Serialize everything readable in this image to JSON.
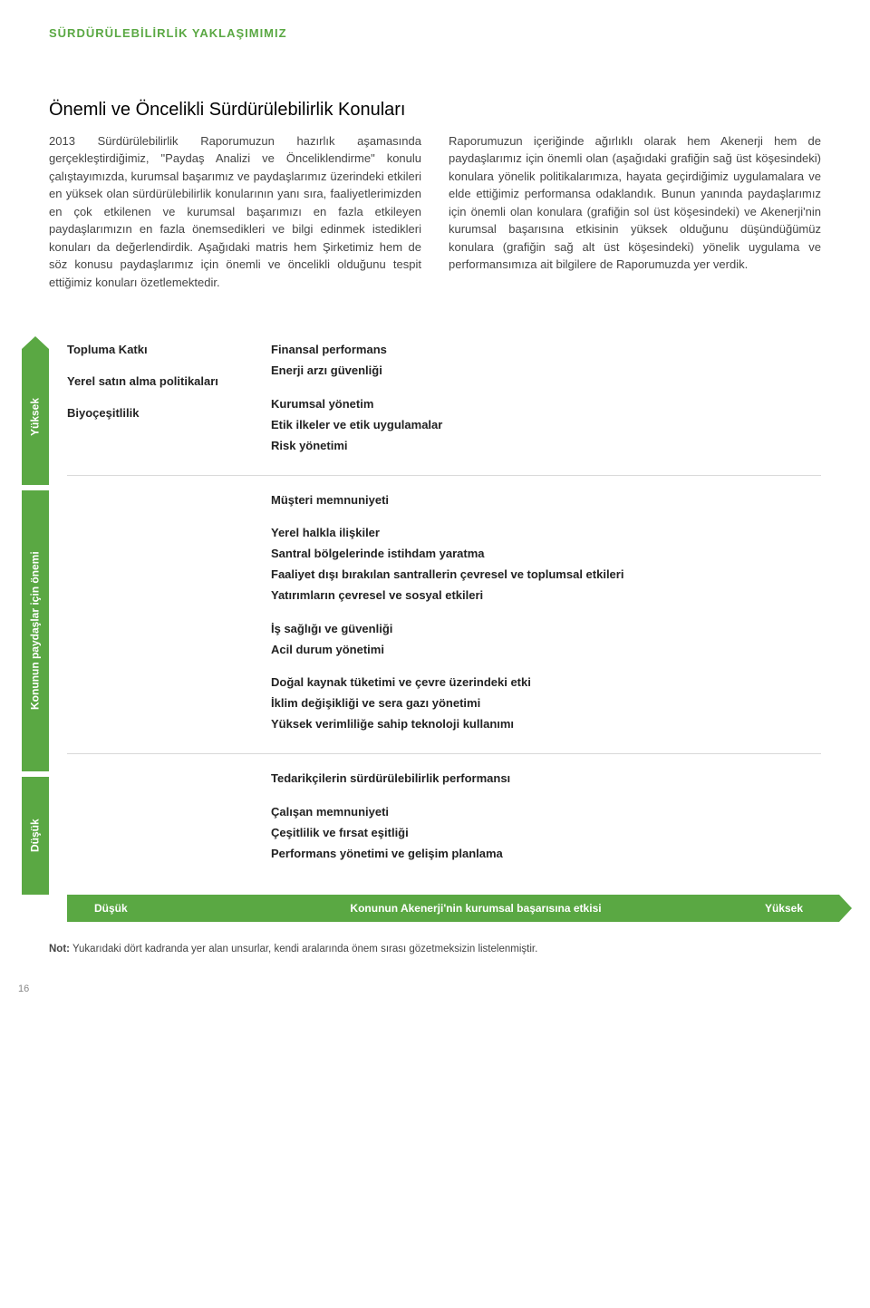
{
  "header": {
    "section": "SÜRDÜRÜLEBİLİRLİK YAKLAŞIMIMIZ",
    "title": "Önemli ve Öncelikli Sürdürülebilirlik Konuları"
  },
  "paragraphs": {
    "left": "2013 Sürdürülebilirlik Raporumuzun hazırlık aşamasında gerçekleştirdiğimiz, \"Paydaş Analizi ve Önceliklendirme\" konulu çalıştayımızda, kurumsal başarımız ve paydaşlarımız üzerindeki etkileri en yüksek olan sürdürülebilirlik konularının yanı sıra, faaliyetlerimizden en çok etkilenen ve kurumsal başarımızı en fazla etkileyen paydaşlarımızın en fazla önemsedikleri ve bilgi edinmek istedikleri konuları da değerlendirdik. Aşağıdaki matris hem Şirketimiz hem de söz konusu paydaşlarımız için önemli ve öncelikli olduğunu tespit ettiğimiz konuları özetlemektedir.",
    "right": "Raporumuzun içeriğinde ağırlıklı olarak hem Akenerji hem de paydaşlarımız için önemli olan (aşağıdaki grafiğin sağ üst köşesindeki) konulara yönelik politikalarımıza, hayata geçirdiğimiz uygulamalara ve elde ettiğimiz performansa odaklandık. Bunun yanında paydaşlarımız için önemli olan konulara (grafiğin sol üst köşesindeki) ve Akenerji'nin kurumsal başarısına etkisinin yüksek olduğunu düşündüğümüz konulara (grafiğin sağ alt üst köşesindeki) yönelik uygulama ve performansımıza ait bilgilere de Raporumuzda yer verdik."
  },
  "matrix": {
    "type": "materiality-quadrant",
    "colors": {
      "axis_bg": "#5aa843",
      "axis_text": "#ffffff",
      "grid_line": "#d9d9d9",
      "item_text": "#222222"
    },
    "y_axis": {
      "high": "Yüksek",
      "mid": "Konunun paydaşlar için önemi",
      "low": "Düşük"
    },
    "x_axis": {
      "low": "Düşük",
      "mid": "Konunun Akenerji'nin kurumsal başarısına etkisi",
      "high": "Yüksek"
    },
    "rows": [
      {
        "left": [
          "Topluma Katkı",
          "Yerel satın alma politikaları",
          "Biyoçeşitlilik"
        ],
        "right_blocks": [
          [
            "Finansal performans",
            "Enerji arzı güvenliği"
          ],
          [
            "Kurumsal yönetim",
            "Etik ilkeler ve etik uygulamalar",
            "Risk yönetimi"
          ]
        ]
      },
      {
        "left": [],
        "right_blocks": [
          [
            "Müşteri memnuniyeti"
          ],
          [
            "Yerel halkla ilişkiler",
            "Santral bölgelerinde istihdam yaratma",
            "Faaliyet dışı bırakılan santrallerin çevresel ve toplumsal etkileri",
            "Yatırımların çevresel ve sosyal etkileri"
          ],
          [
            "İş sağlığı ve güvenliği",
            "Acil durum yönetimi"
          ],
          [
            "Doğal kaynak tüketimi ve çevre üzerindeki etki",
            "İklim değişikliği ve sera gazı yönetimi",
            "Yüksek verimliliğe sahip teknoloji kullanımı"
          ]
        ]
      },
      {
        "left": [],
        "right_blocks": [
          [
            "Tedarikçilerin sürdürülebilirlik performansı"
          ],
          [
            "Çalışan memnuniyeti",
            "Çeşitlilik ve fırsat eşitliği",
            "Performans yönetimi ve gelişim planlama"
          ]
        ]
      }
    ]
  },
  "note_label": "Not:",
  "note_text": " Yukarıdaki dört kadranda yer alan unsurlar, kendi aralarında önem sırası gözetmeksizin listelenmiştir.",
  "page_number": "16"
}
